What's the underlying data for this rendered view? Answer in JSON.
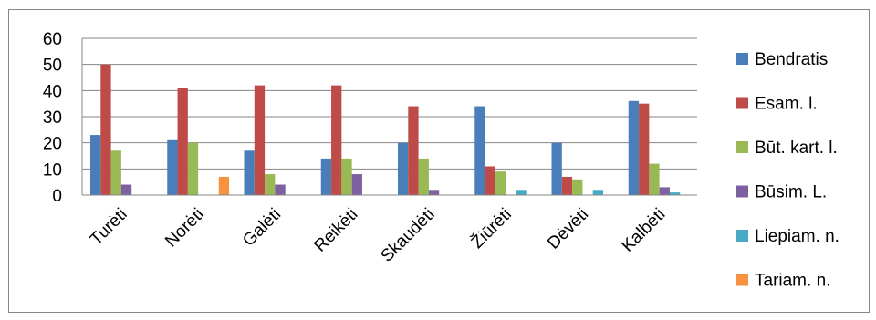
{
  "chart_data": {
    "type": "bar",
    "title": "",
    "xlabel": "",
    "ylabel": "",
    "ylim": [
      0,
      60
    ],
    "yticks": [
      0,
      10,
      20,
      30,
      40,
      50,
      60
    ],
    "grid": true,
    "legend_position": "right",
    "categories": [
      "Turėti",
      "Norėti",
      "Galėti",
      "Reikėti",
      "Skaudėti",
      "Žiūrėti",
      "Dėvėti",
      "Kalbėti"
    ],
    "series": [
      {
        "name": "Bendratis",
        "color": "#4a7ebb",
        "values": [
          23,
          21,
          17,
          14,
          20,
          34,
          20,
          36
        ]
      },
      {
        "name": "Esam. l.",
        "color": "#be4b48",
        "values": [
          50,
          41,
          42,
          42,
          34,
          11,
          7,
          35
        ]
      },
      {
        "name": "Būt. kart. l.",
        "color": "#98b954",
        "values": [
          17,
          20,
          8,
          14,
          14,
          9,
          6,
          12
        ]
      },
      {
        "name": "Būsim. L.",
        "color": "#7d60a0",
        "values": [
          4,
          0,
          4,
          8,
          2,
          0,
          0,
          3
        ]
      },
      {
        "name": "Liepiam. n.",
        "color": "#46aac5",
        "values": [
          0,
          0,
          0,
          0,
          0,
          2,
          2,
          1
        ]
      },
      {
        "name": "Tariam. n.",
        "color": "#f69240",
        "values": [
          0,
          7,
          0,
          0,
          0,
          0,
          0,
          0
        ]
      }
    ]
  }
}
